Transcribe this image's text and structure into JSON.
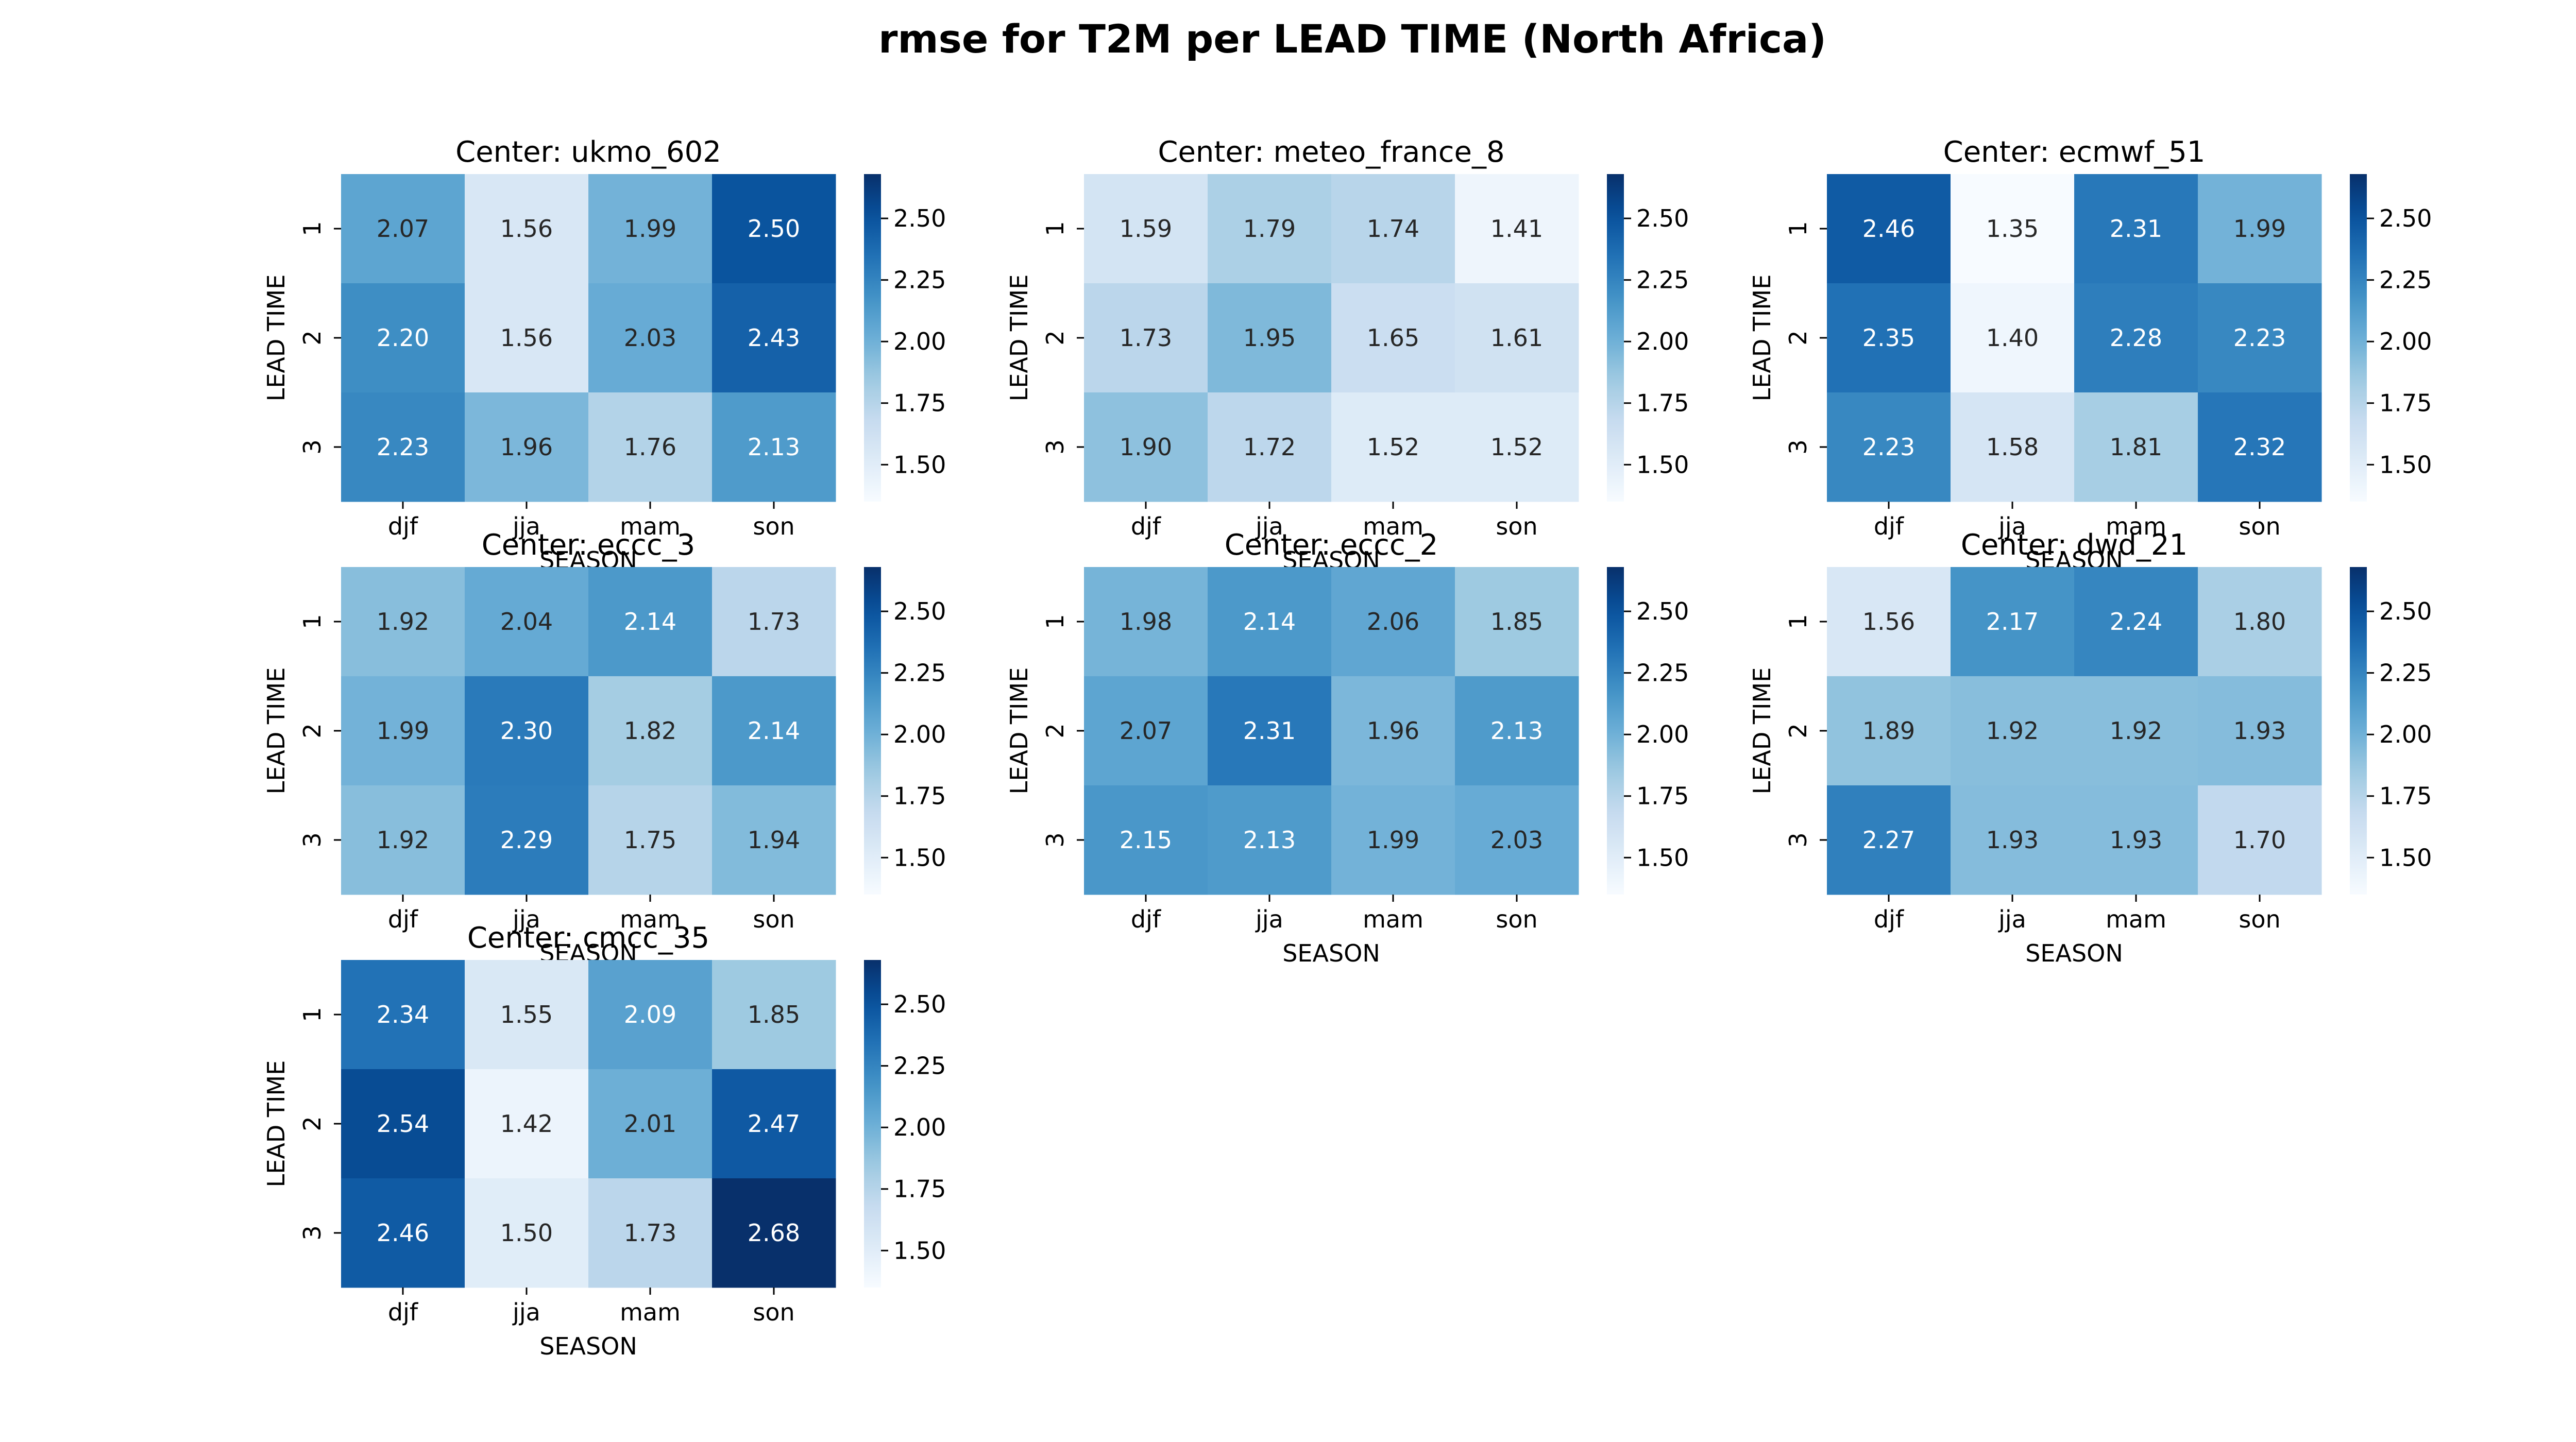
{
  "title": "rmse  for T2M  per  LEAD TIME (North Africa)",
  "colormap": {
    "name": "Blues",
    "vmin": 1.35,
    "vmax": 2.68,
    "stops": [
      "#f7fbff",
      "#deebf7",
      "#c6dbef",
      "#9ecae1",
      "#6baed6",
      "#4292c6",
      "#2171b5",
      "#08519c",
      "#08306b"
    ]
  },
  "colorbar_ticks": [
    "1.50",
    "1.75",
    "2.00",
    "2.25",
    "2.50"
  ],
  "chart_data": [
    {
      "type": "heatmap",
      "title": "Center: ukmo_602",
      "xlabel": "SEASON",
      "ylabel": "LEAD TIME",
      "x": [
        "djf",
        "jja",
        "mam",
        "son"
      ],
      "y": [
        "1",
        "2",
        "3"
      ],
      "values": [
        [
          2.07,
          1.56,
          1.99,
          2.5
        ],
        [
          2.2,
          1.56,
          2.03,
          2.43
        ],
        [
          2.23,
          1.96,
          1.76,
          2.13
        ]
      ]
    },
    {
      "type": "heatmap",
      "title": "Center: meteo_france_8",
      "xlabel": "SEASON",
      "ylabel": "LEAD TIME",
      "x": [
        "djf",
        "jja",
        "mam",
        "son"
      ],
      "y": [
        "1",
        "2",
        "3"
      ],
      "values": [
        [
          1.59,
          1.79,
          1.74,
          1.41
        ],
        [
          1.73,
          1.95,
          1.65,
          1.61
        ],
        [
          1.9,
          1.72,
          1.52,
          1.52
        ]
      ]
    },
    {
      "type": "heatmap",
      "title": "Center: ecmwf_51",
      "xlabel": "SEASON",
      "ylabel": "LEAD TIME",
      "x": [
        "djf",
        "jja",
        "mam",
        "son"
      ],
      "y": [
        "1",
        "2",
        "3"
      ],
      "values": [
        [
          2.46,
          1.35,
          2.31,
          1.99
        ],
        [
          2.35,
          1.4,
          2.28,
          2.23
        ],
        [
          2.23,
          1.58,
          1.81,
          2.32
        ]
      ]
    },
    {
      "type": "heatmap",
      "title": "Center: eccc_3",
      "xlabel": "SEASON",
      "ylabel": "LEAD TIME",
      "x": [
        "djf",
        "jja",
        "mam",
        "son"
      ],
      "y": [
        "1",
        "2",
        "3"
      ],
      "values": [
        [
          1.92,
          2.04,
          2.14,
          1.73
        ],
        [
          1.99,
          2.3,
          1.82,
          2.14
        ],
        [
          1.92,
          2.29,
          1.75,
          1.94
        ]
      ]
    },
    {
      "type": "heatmap",
      "title": "Center: eccc_2",
      "xlabel": "SEASON",
      "ylabel": "LEAD TIME",
      "x": [
        "djf",
        "jja",
        "mam",
        "son"
      ],
      "y": [
        "1",
        "2",
        "3"
      ],
      "values": [
        [
          1.98,
          2.14,
          2.06,
          1.85
        ],
        [
          2.07,
          2.31,
          1.96,
          2.13
        ],
        [
          2.15,
          2.13,
          1.99,
          2.03
        ]
      ]
    },
    {
      "type": "heatmap",
      "title": "Center: dwd_21",
      "xlabel": "SEASON",
      "ylabel": "LEAD TIME",
      "x": [
        "djf",
        "jja",
        "mam",
        "son"
      ],
      "y": [
        "1",
        "2",
        "3"
      ],
      "values": [
        [
          1.56,
          2.17,
          2.24,
          1.8
        ],
        [
          1.89,
          1.92,
          1.92,
          1.93
        ],
        [
          2.27,
          1.93,
          1.93,
          1.7
        ]
      ]
    },
    {
      "type": "heatmap",
      "title": "Center: cmcc_35",
      "xlabel": "SEASON",
      "ylabel": "LEAD TIME",
      "x": [
        "djf",
        "jja",
        "mam",
        "son"
      ],
      "y": [
        "1",
        "2",
        "3"
      ],
      "values": [
        [
          2.34,
          1.55,
          2.09,
          1.85
        ],
        [
          2.54,
          1.42,
          2.01,
          2.47
        ],
        [
          2.46,
          1.5,
          1.73,
          2.68
        ]
      ]
    }
  ]
}
